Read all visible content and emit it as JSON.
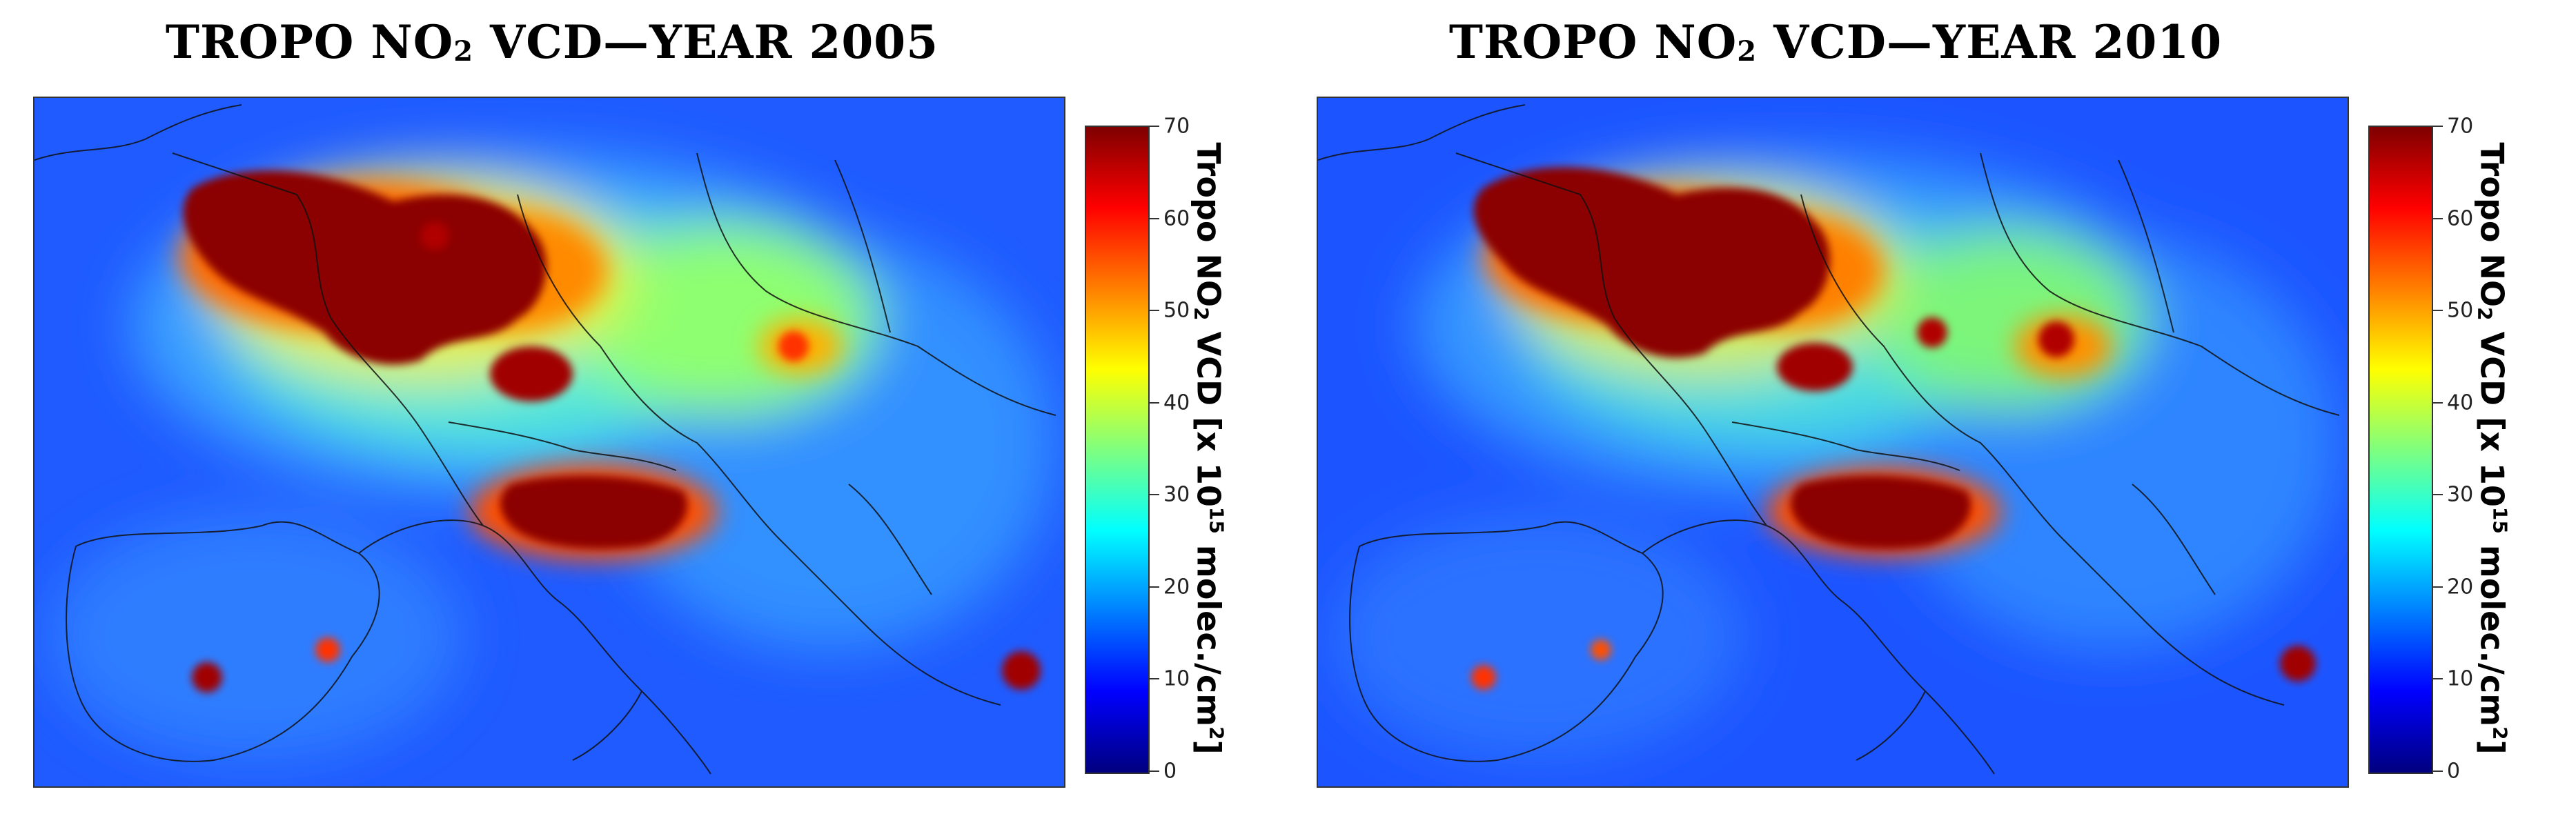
{
  "maps": [
    {
      "title_main": "TROPO NO",
      "title_sub": "2",
      "title_rest": " VCD—YEAR 2005",
      "year": "2005"
    },
    {
      "title_main": "TROPO NO",
      "title_sub": "2",
      "title_rest": " VCD—YEAR 2010",
      "year": "2010"
    }
  ],
  "colorbar": {
    "min": 0,
    "max": 70,
    "ticks": [
      "0",
      "10",
      "20",
      "30",
      "40",
      "50",
      "60",
      "70"
    ],
    "label_a": "Tropo NO",
    "label_sub": "2",
    "label_b": " VCD [x 10",
    "label_sup": "15",
    "label_c": " molec./cm",
    "label_sup2": "2",
    "label_d": "]",
    "colormap": "jet"
  },
  "colors": {
    "ocean": "#1a5cff",
    "land_low": "#2f86ff",
    "hotspot": "#8b0000",
    "border": "#1a1a1a"
  }
}
